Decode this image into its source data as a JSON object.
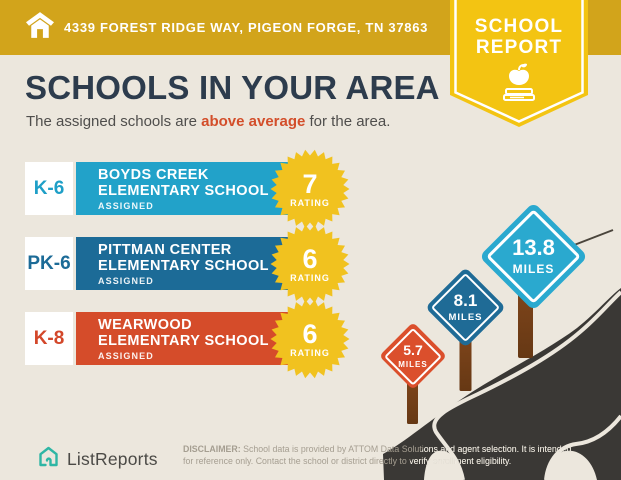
{
  "header": {
    "address": "4339 FOREST RIDGE WAY, PIGEON FORGE, TN 37863"
  },
  "ribbon": {
    "line1": "SCHOOL",
    "line2": "REPORT"
  },
  "title": "SCHOOLS IN YOUR AREA",
  "subtitle": {
    "prefix": "The assigned schools are ",
    "highlight": "above average",
    "suffix": " for the area."
  },
  "schools": [
    {
      "grades": "K-6",
      "name_line1": "BOYDS CREEK",
      "name_line2": "ELEMENTARY SCHOOL",
      "tag": "ASSIGNED",
      "rating": "7",
      "rating_label": "RATING",
      "color": "#22a2c9"
    },
    {
      "grades": "PK-6",
      "name_line1": "PITTMAN CENTER",
      "name_line2": "ELEMENTARY SCHOOL",
      "tag": "ASSIGNED",
      "rating": "6",
      "rating_label": "RATING",
      "color": "#1c6b97"
    },
    {
      "grades": "K-8",
      "name_line1": "WEARWOOD",
      "name_line2": "ELEMENTARY SCHOOL",
      "tag": "ASSIGNED",
      "rating": "6",
      "rating_label": "RATING",
      "color": "#d54c2a"
    }
  ],
  "signs": [
    {
      "value": "5.7",
      "unit": "MILES",
      "color": "#db4f2c"
    },
    {
      "value": "8.1",
      "unit": "MILES",
      "color": "#1f6b96"
    },
    {
      "value": "13.8",
      "unit": "MILES",
      "color": "#2aa9cf"
    }
  ],
  "footer": {
    "brand": "ListReports",
    "disclaimer_label": "DISCLAIMER:",
    "disclaimer_line1": " School data is provided by ATTOM Data Solutions and agent selection. It is intended",
    "disclaimer_line2": "for reference only. Contact the school or district directly to verify enrollment eligibility."
  },
  "colors": {
    "background": "#ece7dd",
    "header_gold": "#d2a41b",
    "ribbon_yellow": "#f3c412",
    "title_navy": "#2d3c4d",
    "accent_orange": "#d34e2a",
    "star_yellow": "#f1c21f",
    "road_dark": "#3a3835",
    "post_brown": "#7c431d",
    "logo_teal": "#2eb6a4"
  }
}
